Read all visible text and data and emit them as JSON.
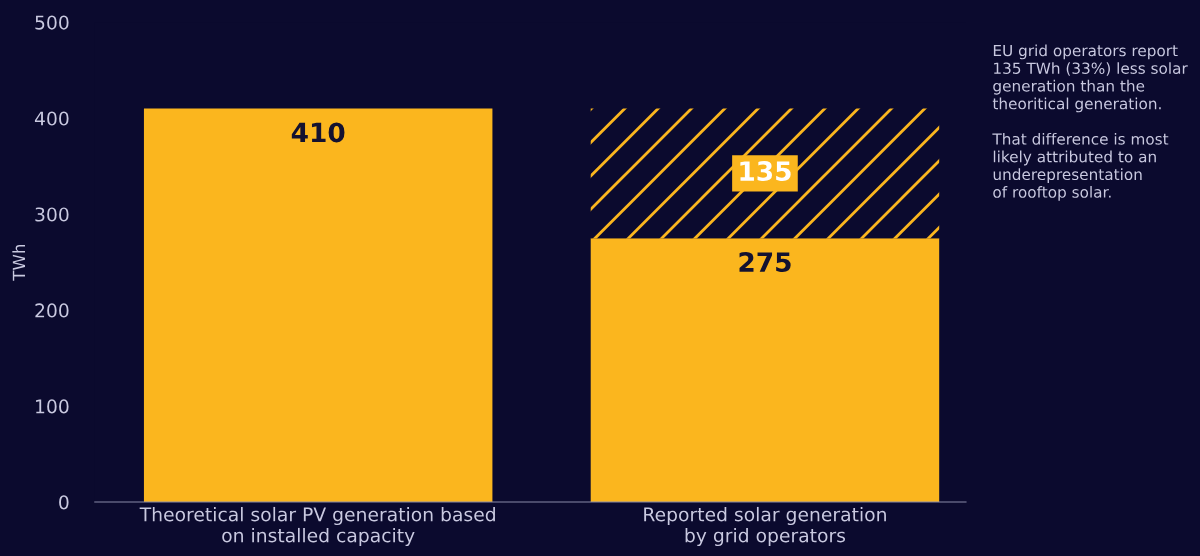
{
  "chart_data": {
    "type": "bar",
    "stacked": true,
    "ylabel": "TWh",
    "categories": [
      "Theoretical solar PV generation based\non installed capacity",
      "Reported solar generation\nby grid operators"
    ],
    "series": [
      {
        "color": "#fbb61e",
        "values": [
          410,
          275
        ]
      },
      {
        "color": "#fbb61e",
        "values": [
          null,
          135
        ]
      }
    ],
    "data_labels": true,
    "ylim": [
      0,
      500
    ],
    "yticks": [
      0,
      100,
      200,
      300,
      400,
      500
    ],
    "grid": false,
    "annotations": [
      "EU grid operators report\n135 TWh (33%) less solar\ngeneration than the\ntheoritical generation.\n\nThat difference is most\nlikely attributed to an\nunderepresentation\nof rooftop solar."
    ]
  }
}
